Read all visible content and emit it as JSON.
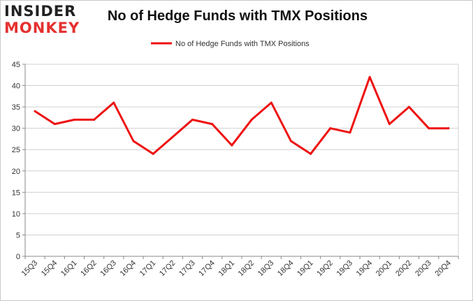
{
  "logo": {
    "line1": "INSIDER",
    "line2": "MONKEY"
  },
  "colors": {
    "series": "#ee1111",
    "grid": "#d0d0d0",
    "axis": "#888888",
    "logo_red": "#e53030"
  },
  "chart_data": {
    "type": "line",
    "title": "No of Hedge Funds with TMX Positions",
    "xlabel": "",
    "ylabel": "",
    "ylim": [
      0,
      45
    ],
    "yticks": [
      0,
      5,
      10,
      15,
      20,
      25,
      30,
      35,
      40,
      45
    ],
    "grid": true,
    "legend": "top-center",
    "categories": [
      "15Q3",
      "15Q4",
      "16Q1",
      "16Q2",
      "16Q3",
      "16Q4",
      "17Q1",
      "17Q2",
      "17Q3",
      "17Q4",
      "18Q1",
      "18Q2",
      "18Q3",
      "18Q4",
      "19Q1",
      "19Q2",
      "19Q3",
      "19Q4",
      "20Q1",
      "20Q2",
      "20Q3",
      "20Q4"
    ],
    "series": [
      {
        "name": "No of Hedge Funds with TMX Positions",
        "values": [
          34,
          31,
          32,
          32,
          36,
          27,
          24,
          28,
          32,
          31,
          26,
          32,
          36,
          27,
          24,
          30,
          29,
          42,
          31,
          35,
          30,
          30
        ]
      }
    ]
  }
}
